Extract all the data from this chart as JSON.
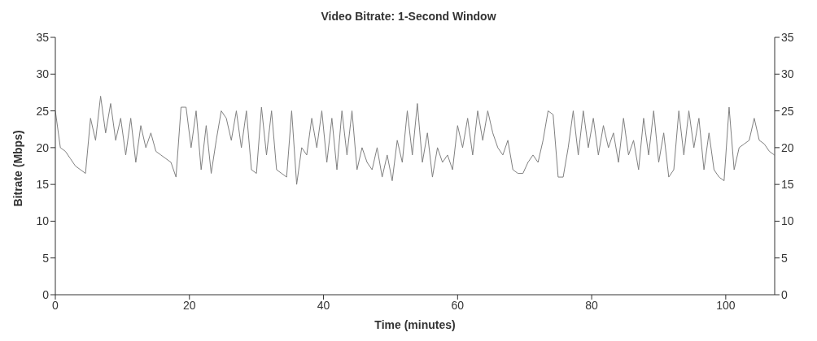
{
  "chart_data": {
    "type": "line",
    "title": "Video Bitrate: 1-Second Window",
    "xlabel": "Time (minutes)",
    "ylabel": "Bitrate (Mbps)",
    "xlim": [
      0,
      107.3
    ],
    "xticks": [
      0,
      20,
      40,
      60,
      80,
      100
    ],
    "ylim": [
      0,
      35
    ],
    "yticks": [
      0,
      5,
      10,
      15,
      20,
      25,
      30,
      35
    ],
    "y2lim": [
      0,
      35
    ],
    "y2ticks": [
      0,
      5,
      10,
      15,
      20,
      25,
      30,
      35
    ],
    "grid": false,
    "legend": false,
    "marker": "none",
    "line_style": "solid",
    "x": [
      0,
      0.75,
      1.5,
      2.25,
      3,
      3.75,
      4.5,
      5.25,
      6,
      6.75,
      7.5,
      8.25,
      9,
      9.75,
      10.5,
      11.25,
      12,
      12.75,
      13.5,
      14.25,
      15,
      15.75,
      16.5,
      17.25,
      18,
      18.75,
      19.5,
      20.25,
      21,
      21.75,
      22.5,
      23.25,
      24,
      24.75,
      25.5,
      26.25,
      27,
      27.75,
      28.5,
      29.25,
      30,
      30.75,
      31.5,
      32.25,
      33,
      33.75,
      34.5,
      35.25,
      36,
      36.75,
      37.5,
      38.25,
      39,
      39.75,
      40.5,
      41.25,
      42,
      42.75,
      43.5,
      44.25,
      45,
      45.75,
      46.5,
      47.25,
      48,
      48.75,
      49.5,
      50.25,
      51,
      51.75,
      52.5,
      53.25,
      54,
      54.75,
      55.5,
      56.25,
      57,
      57.75,
      58.5,
      59.25,
      60,
      60.75,
      61.5,
      62.25,
      63,
      63.75,
      64.5,
      65.25,
      66,
      66.75,
      67.5,
      68.25,
      69,
      69.75,
      70.5,
      71.25,
      72,
      72.75,
      73.5,
      74.25,
      75,
      75.75,
      76.5,
      77.25,
      78,
      78.75,
      79.5,
      80.25,
      81,
      81.75,
      82.5,
      83.25,
      84,
      84.75,
      85.5,
      86.25,
      87,
      87.75,
      88.5,
      89.25,
      90,
      90.75,
      91.5,
      92.25,
      93,
      93.75,
      94.5,
      95.25,
      96,
      96.75,
      97.5,
      98.25,
      99,
      99.75,
      100.5,
      101.25,
      102,
      102.75,
      103.5,
      104.25,
      105,
      105.75,
      106.5,
      107.25
    ],
    "series": [
      {
        "color": "#808080",
        "values": [
          25,
          20,
          19.5,
          18.5,
          17.5,
          17,
          16.5,
          24,
          21,
          27,
          22,
          26,
          21,
          24,
          19,
          24,
          18,
          23,
          20,
          22,
          19.5,
          19,
          18.5,
          18,
          16,
          25.5,
          25.5,
          20,
          25,
          17,
          23,
          16.5,
          21,
          25,
          24,
          21,
          25,
          20,
          25,
          17,
          16.5,
          25.5,
          19,
          25,
          17,
          16.5,
          16,
          25,
          15,
          20,
          19,
          24,
          20,
          25,
          18,
          24,
          17,
          25,
          19,
          25,
          17,
          20,
          18,
          17,
          20,
          16,
          19,
          15.5,
          21,
          18,
          25,
          19,
          26,
          18,
          22,
          16,
          20,
          18,
          19,
          17,
          23,
          20,
          24,
          19,
          25,
          21,
          25,
          22,
          20,
          19,
          21,
          17,
          16.5,
          16.5,
          18,
          19,
          18,
          21,
          25,
          24.5,
          16,
          16,
          20,
          25,
          19,
          25,
          20,
          24,
          19,
          23,
          20,
          22,
          18,
          24,
          19,
          21,
          17,
          24,
          19,
          25,
          18,
          22,
          16,
          17,
          25,
          19,
          25,
          20,
          24,
          17,
          22,
          17,
          16,
          15.5,
          25.5,
          17,
          20,
          20.5,
          21,
          24,
          21,
          20.5,
          19.5,
          19
        ]
      }
    ]
  }
}
